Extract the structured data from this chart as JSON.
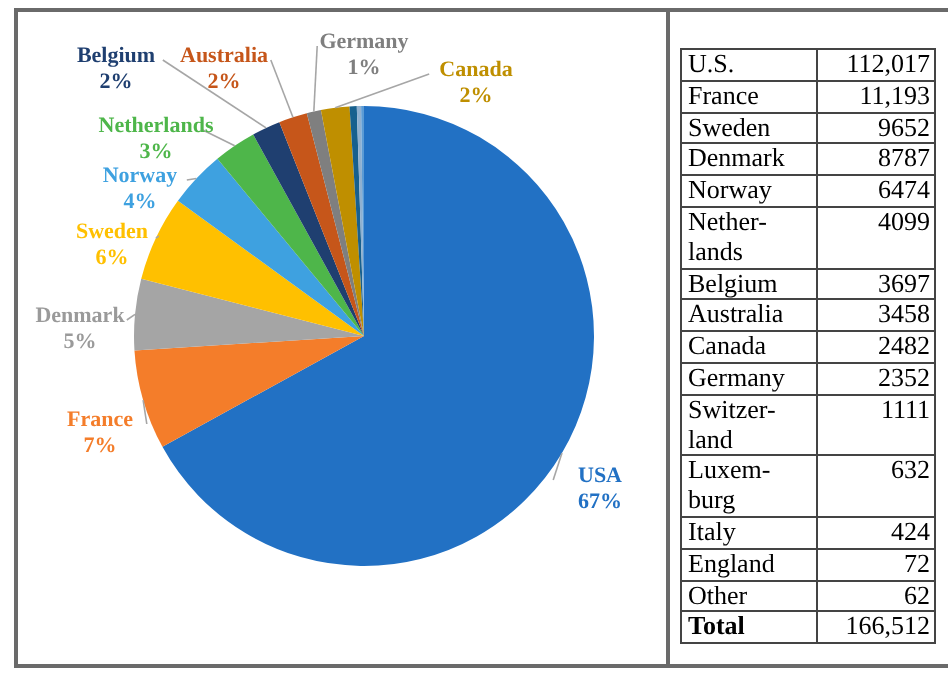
{
  "chart_data": [
    {
      "type": "pie",
      "categories": [
        "USA",
        "France",
        "Denmark",
        "Sweden",
        "Norway",
        "Netherlands",
        "Belgium",
        "Australia",
        "Germany",
        "Canada",
        null,
        null,
        null
      ],
      "values": [
        67,
        7,
        5,
        6,
        4,
        3,
        2,
        2,
        1,
        2,
        0.5,
        0.3,
        0.2
      ],
      "colors": [
        "#2271c4",
        "#f47d2a",
        "#a5a5a5",
        "#ffc000",
        "#3ea1e0",
        "#4eb64a",
        "#1f3f70",
        "#c6561a",
        "#7f7f7f",
        "#bf8f00",
        "#17608e",
        "#8fb0d0",
        "#5b9bd5"
      ],
      "value_labels": [
        "67%",
        "7%",
        "5%",
        "6%",
        "4%",
        "3%",
        "2%",
        "2%",
        "1%",
        "2%",
        null,
        null,
        null
      ],
      "legend": false
    },
    {
      "type": "other",
      "categories": [
        "U.S.",
        "France",
        "Sweden",
        "Denmark",
        "Norway",
        "Nether-lands",
        "Belgium",
        "Australia",
        "Canada",
        "Germany",
        "Switzer-land",
        "Luxem-burg",
        "Italy",
        "England",
        "Other",
        "Total"
      ],
      "value_labels": [
        "112,017",
        "11,193",
        "9652",
        "8787",
        "6474",
        "4099",
        "3697",
        "3458",
        "2482",
        "2352",
        "1111",
        "632",
        "424",
        "72",
        "62",
        "166,512"
      ]
    }
  ]
}
